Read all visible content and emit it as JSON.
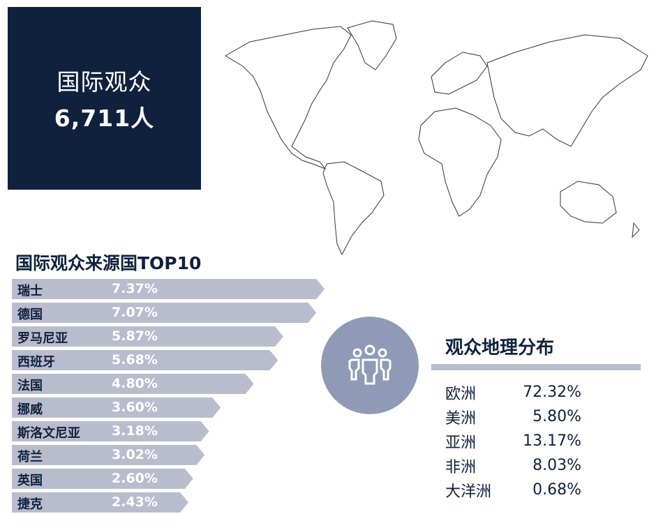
{
  "hero": {
    "title": "国际观众",
    "count": "6,711人",
    "bg_color": "#0f213d"
  },
  "map": {
    "icon": "world-map-outline"
  },
  "chart_data": {
    "type": "bar",
    "orientation": "horizontal",
    "title": "国际观众来源国TOP10",
    "categories": [
      "瑞士",
      "德国",
      "罗马尼亚",
      "西班牙",
      "法国",
      "挪威",
      "斯洛文尼亚",
      "荷兰",
      "英国",
      "捷克"
    ],
    "values": [
      7.37,
      7.07,
      5.87,
      5.68,
      4.8,
      3.6,
      3.18,
      3.02,
      2.6,
      2.43
    ],
    "labels": [
      "7.37%",
      "7.07%",
      "5.87%",
      "5.68%",
      "4.80%",
      "3.60%",
      "3.18%",
      "3.02%",
      "2.60%",
      "2.43%"
    ],
    "unit": "%",
    "bar_color": "#b9bccd"
  },
  "geo": {
    "icon": "people-group-icon",
    "title": "观众地理分布",
    "rows": [
      {
        "name": "欧洲",
        "value": "72.32%"
      },
      {
        "name": "美洲",
        "value": "5.80%"
      },
      {
        "name": "亚洲",
        "value": "13.17%"
      },
      {
        "name": "非洲",
        "value": "8.03%"
      },
      {
        "name": "大洋洲",
        "value": "0.68%"
      }
    ]
  }
}
